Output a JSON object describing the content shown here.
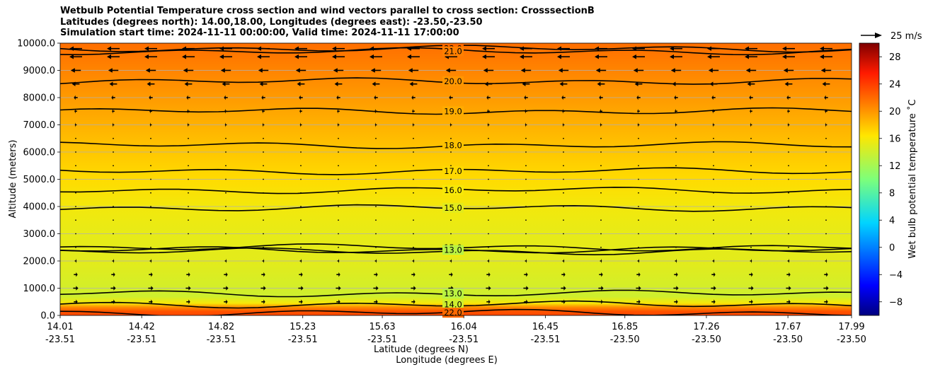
{
  "chart_data": {
    "type": "heatmap",
    "title": "Wetbulb Potential Temperature cross section and wind vectors parallel to cross section: CrosssectionB",
    "subtitle_lines": [
      "Latitudes (degrees north): 14.00,18.00, Longitudes (degrees east): -23.50,-23.50",
      "Simulation start time: 2024-11-11 00:00:00, Valid time: 2024-11-11 17:00:00"
    ],
    "xlabel_lat": "Latitude (degrees N)",
    "xlabel_lon": "Longitude (degrees E)",
    "ylabel": "Altitude (meters)",
    "ylim": [
      0,
      10000
    ],
    "xlim": [
      14.01,
      17.99
    ],
    "yticks": [
      "0.0",
      "1000.0",
      "2000.0",
      "3000.0",
      "4000.0",
      "5000.0",
      "6000.0",
      "7000.0",
      "8000.0",
      "9000.0",
      "10000.0"
    ],
    "ytick_values": [
      0,
      1000,
      2000,
      3000,
      4000,
      5000,
      6000,
      7000,
      8000,
      9000,
      10000
    ],
    "xticks_lat": [
      "14.01",
      "14.42",
      "14.82",
      "15.23",
      "15.63",
      "16.04",
      "16.45",
      "16.85",
      "17.26",
      "17.67",
      "17.99"
    ],
    "xticks_lon": [
      "-23.51",
      "-23.51",
      "-23.51",
      "-23.51",
      "-23.51",
      "-23.51",
      "-23.51",
      "-23.50",
      "-23.50",
      "-23.50",
      "-23.50"
    ],
    "xtick_values": [
      14.01,
      14.42,
      14.82,
      15.23,
      15.63,
      16.04,
      16.45,
      16.85,
      17.26,
      17.67,
      17.99
    ],
    "grid": "horizontal",
    "colorbar": {
      "label": "Wet bulb potential temperature ˚C",
      "min": -10,
      "max": 30,
      "tick_labels": [
        "−8",
        "−4",
        "0",
        "4",
        "8",
        "12",
        "16",
        "20",
        "24",
        "28"
      ],
      "tick_values": [
        -8,
        -4,
        0,
        4,
        8,
        12,
        16,
        20,
        24,
        28
      ]
    },
    "vector_key": "25 m/s",
    "profile": [
      {
        "alt": 0,
        "temp": 23.5
      },
      {
        "alt": 150,
        "temp": 23.0
      },
      {
        "alt": 300,
        "temp": 20.5
      },
      {
        "alt": 450,
        "temp": 16.0
      },
      {
        "alt": 700,
        "temp": 14.0
      },
      {
        "alt": 1200,
        "temp": 14.4
      },
      {
        "alt": 2000,
        "temp": 15.0
      },
      {
        "alt": 3000,
        "temp": 15.2
      },
      {
        "alt": 4000,
        "temp": 15.8
      },
      {
        "alt": 5000,
        "temp": 16.9
      },
      {
        "alt": 6000,
        "temp": 17.8
      },
      {
        "alt": 7000,
        "temp": 18.8
      },
      {
        "alt": 8000,
        "temp": 19.8
      },
      {
        "alt": 9000,
        "temp": 20.8
      },
      {
        "alt": 10000,
        "temp": 21.8
      }
    ],
    "contours": [
      {
        "label": "22.0",
        "alt": 9800
      },
      {
        "label": "21.0",
        "alt": 9700
      },
      {
        "label": "20.0",
        "alt": 8600
      },
      {
        "label": "19.0",
        "alt": 7500
      },
      {
        "label": "18.0",
        "alt": 6250
      },
      {
        "label": "17.0",
        "alt": 5300
      },
      {
        "label": "16.0",
        "alt": 4600
      },
      {
        "label": "15.0",
        "alt": 3950
      },
      {
        "label": "15.0",
        "alt": 2500
      },
      {
        "label": "16.0",
        "alt": 2350
      },
      {
        "label": "13.0",
        "alt": 2400
      },
      {
        "label": "13.0",
        "alt": 800
      },
      {
        "label": "14.0",
        "alt": 400
      },
      {
        "label": "22.0",
        "alt": 100
      }
    ],
    "wind_rows": [
      {
        "alt": 9800,
        "u": -1.0
      },
      {
        "alt": 9500,
        "u": -1.0
      },
      {
        "alt": 9000,
        "u": -0.8
      },
      {
        "alt": 8500,
        "u": -0.6
      },
      {
        "alt": 8000,
        "u": -0.3
      },
      {
        "alt": 7500,
        "u": -0.2
      },
      {
        "alt": 7000,
        "u": -0.15
      },
      {
        "alt": 6500,
        "u": -0.1
      },
      {
        "alt": 6000,
        "u": -0.1
      },
      {
        "alt": 5500,
        "u": 0.05
      },
      {
        "alt": 5000,
        "u": 0.05
      },
      {
        "alt": 4500,
        "u": 0.05
      },
      {
        "alt": 4000,
        "u": 0.05
      },
      {
        "alt": 3500,
        "u": 0.05
      },
      {
        "alt": 3000,
        "u": 0.05
      },
      {
        "alt": 2500,
        "u": 0.1
      },
      {
        "alt": 2000,
        "u": 0.15
      },
      {
        "alt": 1500,
        "u": 0.3
      },
      {
        "alt": 1000,
        "u": 0.4
      },
      {
        "alt": 500,
        "u": 0.3
      }
    ]
  }
}
